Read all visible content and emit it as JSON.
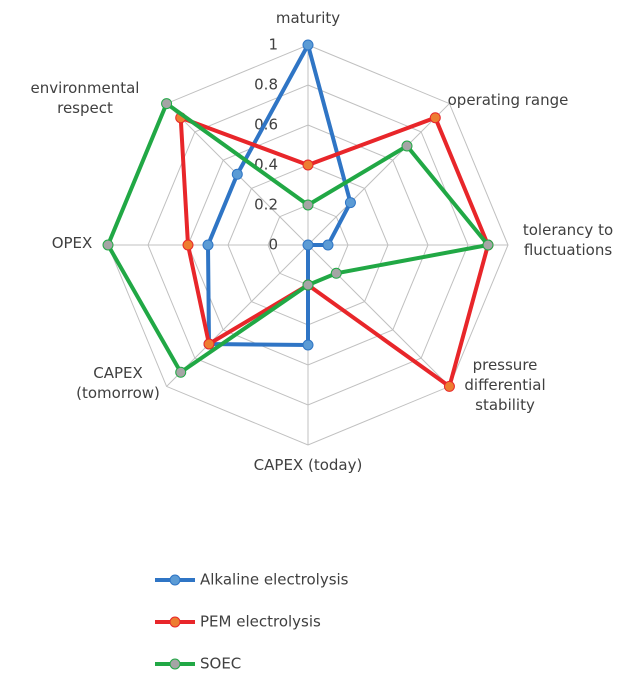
{
  "chart_data": {
    "type": "radar",
    "categories": [
      "maturity",
      "operating range",
      "tolerancy to fluctuations",
      "pressure differential stability",
      "CAPEX (today)",
      "CAPEX (tomorrow)",
      "OPEX",
      "environmental respect"
    ],
    "series": [
      {
        "name": "Alkaline electrolysis",
        "color": "#2f75c5",
        "marker_color": "#5b9bd5",
        "values": [
          1,
          0.3,
          0.1,
          0,
          0.5,
          0.7,
          0.5,
          0.5
        ]
      },
      {
        "name": "PEM electrolysis",
        "color": "#e8262a",
        "marker_color": "#ed7d31",
        "values": [
          0.4,
          0.9,
          0.9,
          1,
          0.2,
          0.7,
          0.6,
          0.9
        ]
      },
      {
        "name": "SOEC",
        "color": "#21a845",
        "marker_color": "#a5a5a5",
        "values": [
          0.2,
          0.7,
          0.9,
          0.2,
          0.2,
          0.9,
          1,
          1
        ]
      }
    ],
    "ylim": [
      0,
      1
    ],
    "yticks": [
      0,
      0.2,
      0.4,
      0.6,
      0.8,
      1
    ],
    "grid": true,
    "legend": "bottom"
  }
}
